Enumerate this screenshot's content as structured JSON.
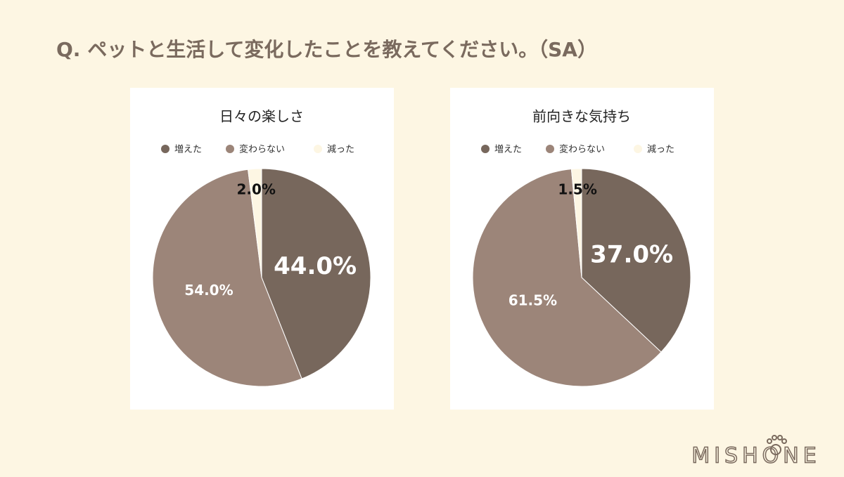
{
  "title": "Q.  ペットと生活して変化したことを教えてください。（SA）",
  "logo": "MISHONE",
  "chart_data": [
    {
      "type": "pie",
      "title": "日々の楽しさ",
      "categories": [
        "増えた",
        "変わらない",
        "減った"
      ],
      "values": [
        44.0,
        54.0,
        2.0
      ],
      "value_labels": [
        "44.0%",
        "54.0%",
        "2.0%"
      ],
      "colors": [
        "#77675c",
        "#9c8579",
        "#fdf6e3"
      ]
    },
    {
      "type": "pie",
      "title": "前向きな気持ち",
      "categories": [
        "増えた",
        "変わらない",
        "減った"
      ],
      "values": [
        37.0,
        61.5,
        1.5
      ],
      "value_labels": [
        "37.0%",
        "61.5%",
        "1.5%"
      ],
      "colors": [
        "#77675c",
        "#9c8579",
        "#fdf6e3"
      ]
    }
  ]
}
